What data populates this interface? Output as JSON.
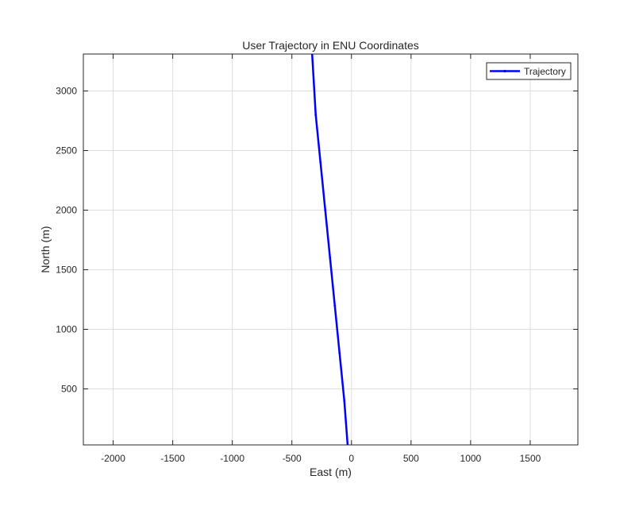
{
  "chart_data": {
    "type": "line",
    "title": "User Trajectory in ENU Coordinates",
    "xlabel": "East (m)",
    "ylabel": "North (m)",
    "xlim": [
      -2250,
      1900
    ],
    "ylim": [
      30,
      3310
    ],
    "xticks": [
      -2000,
      -1500,
      -1000,
      -500,
      0,
      500,
      1000,
      1500
    ],
    "yticks": [
      500,
      1000,
      1500,
      2000,
      2500,
      3000
    ],
    "grid": true,
    "legend_position": "top-right",
    "series": [
      {
        "name": "Trajectory",
        "color": "#0000ff",
        "marker": "point",
        "x": [
          -30,
          -60,
          -100,
          -140,
          -180,
          -220,
          -260,
          -300,
          -330
        ],
        "y": [
          0,
          400,
          800,
          1200,
          1600,
          2000,
          2400,
          2800,
          3310
        ]
      }
    ]
  }
}
